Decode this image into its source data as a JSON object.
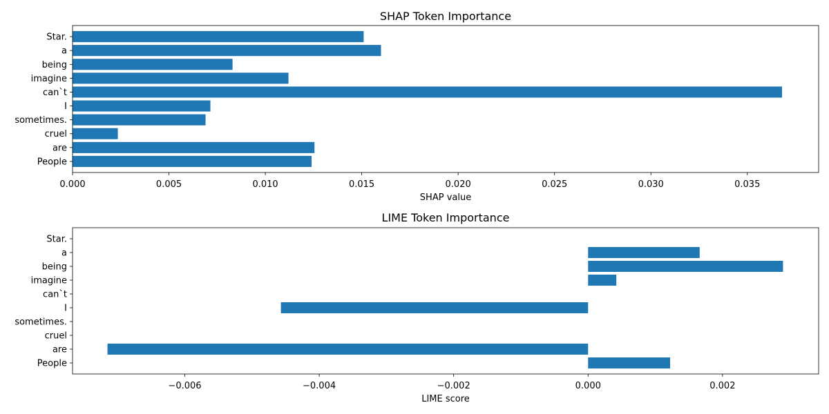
{
  "chart_data": [
    {
      "type": "bar",
      "orientation": "horizontal",
      "title": "SHAP Token Importance",
      "xlabel": "SHAP value",
      "ylabel": "",
      "categories": [
        "People",
        "are",
        "cruel",
        "sometimes.",
        "I",
        "can`t",
        "imagine",
        "being",
        "a",
        "Star."
      ],
      "values": [
        0.0124,
        0.01255,
        0.00235,
        0.0069,
        0.00715,
        0.0368,
        0.0112,
        0.0083,
        0.016,
        0.0151
      ],
      "xlim": [
        0,
        0.0387
      ],
      "xticks": [
        0.0,
        0.005,
        0.01,
        0.015,
        0.02,
        0.025,
        0.03,
        0.035
      ],
      "xtick_labels": [
        "0.000",
        "0.005",
        "0.010",
        "0.015",
        "0.020",
        "0.025",
        "0.030",
        "0.035"
      ],
      "bar_color": "#1f77b4",
      "grid": false
    },
    {
      "type": "bar",
      "orientation": "horizontal",
      "title": "LIME Token Importance",
      "xlabel": "LIME score",
      "ylabel": "",
      "categories": [
        "People",
        "are",
        "cruel",
        "sometimes.",
        "I",
        "can`t",
        "imagine",
        "being",
        "a",
        "Star."
      ],
      "values": [
        0.00122,
        -0.00715,
        0.0,
        0.0,
        -0.00457,
        0.0,
        0.00042,
        0.0029,
        0.00166,
        0.0
      ],
      "xlim": [
        -0.00767,
        0.00343
      ],
      "xticks": [
        -0.006,
        -0.004,
        -0.002,
        0.0,
        0.002
      ],
      "xtick_labels": [
        "−0.006",
        "−0.004",
        "−0.002",
        "0.000",
        "0.002"
      ],
      "bar_color": "#1f77b4",
      "grid": false
    }
  ]
}
